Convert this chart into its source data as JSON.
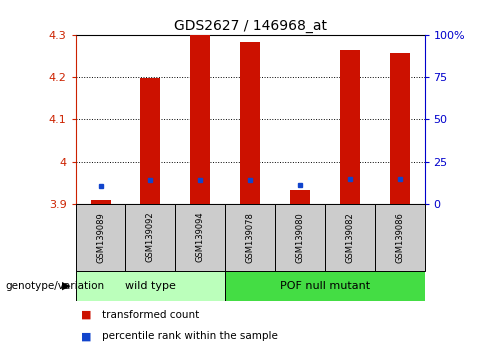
{
  "title": "GDS2627 / 146968_at",
  "samples": [
    "GSM139089",
    "GSM139092",
    "GSM139094",
    "GSM139078",
    "GSM139080",
    "GSM139082",
    "GSM139086"
  ],
  "red_bars": [
    3.908,
    4.198,
    4.3,
    4.285,
    3.933,
    4.265,
    4.258
  ],
  "blue_squares": [
    3.942,
    3.956,
    3.957,
    3.957,
    3.944,
    3.958,
    3.958
  ],
  "ylim_left": [
    3.9,
    4.3
  ],
  "ylim_right": [
    0,
    100
  ],
  "yticks_left": [
    3.9,
    4.0,
    4.1,
    4.2,
    4.3
  ],
  "ytick_labels_left": [
    "3.9",
    "4",
    "4.1",
    "4.2",
    "4.3"
  ],
  "yticks_right": [
    0,
    25,
    50,
    75,
    100
  ],
  "ytick_labels_right": [
    "0",
    "25",
    "50",
    "75",
    "100%"
  ],
  "bar_width": 0.4,
  "groups": [
    {
      "label": "wild type",
      "indices": [
        0,
        1,
        2
      ],
      "color": "#bbffbb"
    },
    {
      "label": "POF null mutant",
      "indices": [
        3,
        4,
        5,
        6
      ],
      "color": "#44dd44"
    }
  ],
  "red_color": "#cc1100",
  "blue_color": "#1144cc",
  "left_tick_color": "#cc2200",
  "right_tick_color": "#0000cc",
  "legend_red_label": "transformed count",
  "legend_blue_label": "percentile rank within the sample",
  "genotype_label": "genotype/variation"
}
